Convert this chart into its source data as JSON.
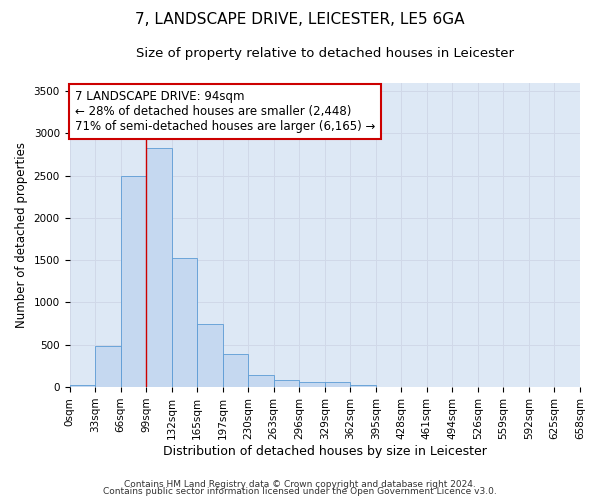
{
  "title": "7, LANDSCAPE DRIVE, LEICESTER, LE5 6GA",
  "subtitle": "Size of property relative to detached houses in Leicester",
  "xlabel": "Distribution of detached houses by size in Leicester",
  "ylabel": "Number of detached properties",
  "bar_values": [
    20,
    480,
    2500,
    2820,
    1520,
    750,
    390,
    140,
    80,
    55,
    55,
    30,
    0,
    0,
    0,
    0,
    0,
    0,
    0,
    0
  ],
  "bin_labels": [
    "0sqm",
    "33sqm",
    "66sqm",
    "99sqm",
    "132sqm",
    "165sqm",
    "197sqm",
    "230sqm",
    "263sqm",
    "296sqm",
    "329sqm",
    "362sqm",
    "395sqm",
    "428sqm",
    "461sqm",
    "494sqm",
    "526sqm",
    "559sqm",
    "592sqm",
    "625sqm",
    "658sqm"
  ],
  "bar_color": "#c5d8f0",
  "bar_edge_color": "#5b9bd5",
  "grid_color": "#d0d8e8",
  "bg_color": "#dde8f5",
  "vline_x": 3,
  "vline_color": "#cc0000",
  "annotation_line1": "7 LANDSCAPE DRIVE: 94sqm",
  "annotation_line2": "← 28% of detached houses are smaller (2,448)",
  "annotation_line3": "71% of semi-detached houses are larger (6,165) →",
  "annotation_box_color": "#ffffff",
  "annotation_box_edge": "#cc0000",
  "ylim": [
    0,
    3600
  ],
  "yticks": [
    0,
    500,
    1000,
    1500,
    2000,
    2500,
    3000,
    3500
  ],
  "footer1": "Contains HM Land Registry data © Crown copyright and database right 2024.",
  "footer2": "Contains public sector information licensed under the Open Government Licence v3.0.",
  "title_fontsize": 11,
  "subtitle_fontsize": 9.5,
  "ylabel_fontsize": 8.5,
  "xlabel_fontsize": 9,
  "tick_fontsize": 7.5,
  "footer_fontsize": 6.5,
  "annotation_fontsize": 8.5
}
